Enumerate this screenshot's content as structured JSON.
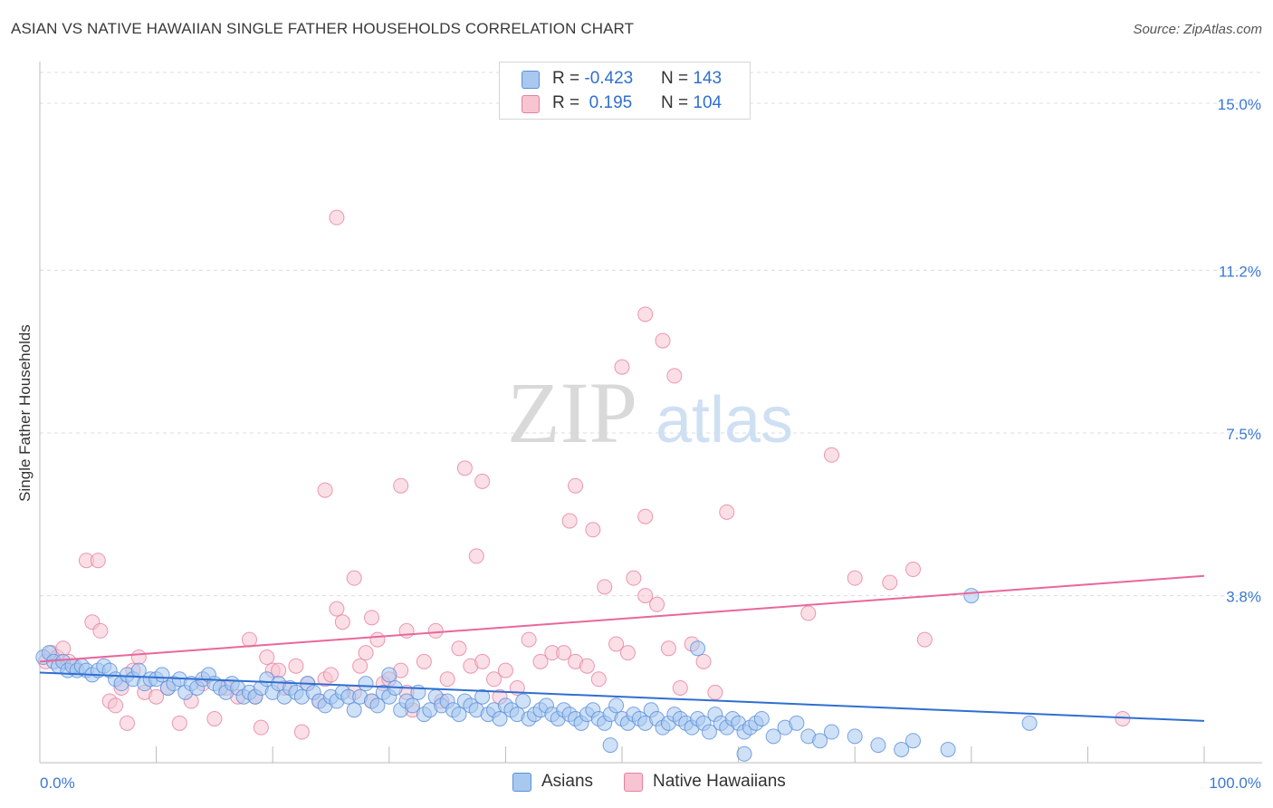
{
  "title": "ASIAN VS NATIVE HAWAIIAN SINGLE FATHER HOUSEHOLDS CORRELATION CHART",
  "source": "Source: ZipAtlas.com",
  "watermark": {
    "zip": "ZIP",
    "atlas": "atlas"
  },
  "legend": {
    "rows": [
      {
        "r_label": "R = ",
        "r_value": "-0.423",
        "n_label": "N = ",
        "n_value": "143",
        "color": "#a8c8f0",
        "border": "#5b8fd9"
      },
      {
        "r_label": "R = ",
        "r_value": " 0.195",
        "n_label": "N = ",
        "n_value": "104",
        "color": "#f8c4d2",
        "border": "#e77fa0"
      }
    ]
  },
  "bottom_legend": [
    {
      "label": "Asians",
      "color": "#a8c8f0",
      "border": "#5b8fd9"
    },
    {
      "label": "Native Hawaiians",
      "color": "#f8c4d2",
      "border": "#e77fa0"
    }
  ],
  "chart_data": {
    "type": "scatter",
    "title": "ASIAN VS NATIVE HAWAIIAN SINGLE FATHER HOUSEHOLDS CORRELATION CHART",
    "xlabel": "",
    "ylabel": "Single Father Households",
    "xlim": [
      0,
      100
    ],
    "ylim": [
      0,
      15.7
    ],
    "x_tick_labels": [
      "0.0%",
      "100.0%"
    ],
    "y_ticks": [
      3.8,
      7.5,
      11.2,
      15.0
    ],
    "y_tick_labels": [
      "3.8%",
      "7.5%",
      "11.2%",
      "15.0%"
    ],
    "grid": "horizontal dashed",
    "colors": {
      "asians": "#5b8fd9",
      "asians_fill": "#a8c8f0",
      "hawaiians": "#e77fa0",
      "hawaiians_fill": "#f8c4d2",
      "asian_trend": "#2f6fd1",
      "hawaiian_trend": "#e8689a"
    },
    "series": [
      {
        "name": "Asians",
        "trend": {
          "x": [
            0,
            100
          ],
          "y": [
            2.05,
            0.95
          ]
        },
        "points": [
          [
            0.3,
            2.4
          ],
          [
            0.8,
            2.5
          ],
          [
            1.2,
            2.3
          ],
          [
            1.6,
            2.2
          ],
          [
            2.0,
            2.3
          ],
          [
            2.4,
            2.1
          ],
          [
            2.8,
            2.2
          ],
          [
            3.2,
            2.1
          ],
          [
            3.6,
            2.2
          ],
          [
            4.0,
            2.1
          ],
          [
            4.5,
            2.0
          ],
          [
            5.0,
            2.1
          ],
          [
            5.5,
            2.2
          ],
          [
            6.0,
            2.1
          ],
          [
            6.5,
            1.9
          ],
          [
            7.0,
            1.8
          ],
          [
            7.5,
            2.0
          ],
          [
            8.0,
            1.9
          ],
          [
            8.5,
            2.1
          ],
          [
            9.0,
            1.8
          ],
          [
            9.5,
            1.9
          ],
          [
            10.0,
            1.9
          ],
          [
            10.5,
            2.0
          ],
          [
            11.0,
            1.7
          ],
          [
            11.5,
            1.8
          ],
          [
            12.0,
            1.9
          ],
          [
            12.5,
            1.6
          ],
          [
            13.0,
            1.8
          ],
          [
            13.5,
            1.7
          ],
          [
            14.0,
            1.9
          ],
          [
            14.5,
            2.0
          ],
          [
            15.0,
            1.8
          ],
          [
            15.5,
            1.7
          ],
          [
            16.0,
            1.6
          ],
          [
            16.5,
            1.8
          ],
          [
            17.0,
            1.7
          ],
          [
            17.5,
            1.5
          ],
          [
            18.0,
            1.6
          ],
          [
            18.5,
            1.5
          ],
          [
            19.0,
            1.7
          ],
          [
            19.5,
            1.9
          ],
          [
            20.0,
            1.6
          ],
          [
            20.5,
            1.8
          ],
          [
            21.0,
            1.5
          ],
          [
            21.5,
            1.7
          ],
          [
            22.0,
            1.6
          ],
          [
            22.5,
            1.5
          ],
          [
            23.0,
            1.8
          ],
          [
            23.5,
            1.6
          ],
          [
            24.0,
            1.4
          ],
          [
            24.5,
            1.3
          ],
          [
            25.0,
            1.5
          ],
          [
            25.5,
            1.4
          ],
          [
            26.0,
            1.6
          ],
          [
            26.5,
            1.5
          ],
          [
            27.0,
            1.2
          ],
          [
            27.5,
            1.5
          ],
          [
            28.0,
            1.8
          ],
          [
            28.5,
            1.4
          ],
          [
            29.0,
            1.3
          ],
          [
            29.5,
            1.6
          ],
          [
            30.0,
            1.5
          ],
          [
            30.5,
            1.7
          ],
          [
            31.0,
            1.2
          ],
          [
            31.5,
            1.4
          ],
          [
            32.0,
            1.3
          ],
          [
            32.5,
            1.6
          ],
          [
            33.0,
            1.1
          ],
          [
            33.5,
            1.2
          ],
          [
            34.0,
            1.5
          ],
          [
            34.5,
            1.3
          ],
          [
            35.0,
            1.4
          ],
          [
            35.5,
            1.2
          ],
          [
            36.0,
            1.1
          ],
          [
            36.5,
            1.4
          ],
          [
            37.0,
            1.3
          ],
          [
            37.5,
            1.2
          ],
          [
            38.0,
            1.5
          ],
          [
            38.5,
            1.1
          ],
          [
            39.0,
            1.2
          ],
          [
            39.5,
            1.0
          ],
          [
            40.0,
            1.3
          ],
          [
            40.5,
            1.2
          ],
          [
            41.0,
            1.1
          ],
          [
            41.5,
            1.4
          ],
          [
            42.0,
            1.0
          ],
          [
            42.5,
            1.1
          ],
          [
            43.0,
            1.2
          ],
          [
            43.5,
            1.3
          ],
          [
            44.0,
            1.1
          ],
          [
            44.5,
            1.0
          ],
          [
            45.0,
            1.2
          ],
          [
            45.5,
            1.1
          ],
          [
            46.0,
            1.0
          ],
          [
            46.5,
            0.9
          ],
          [
            47.0,
            1.1
          ],
          [
            47.5,
            1.2
          ],
          [
            48.0,
            1.0
          ],
          [
            48.5,
            0.9
          ],
          [
            49.0,
            1.1
          ],
          [
            49.5,
            1.3
          ],
          [
            50.0,
            1.0
          ],
          [
            50.5,
            0.9
          ],
          [
            51.0,
            1.1
          ],
          [
            51.5,
            1.0
          ],
          [
            52.0,
            0.9
          ],
          [
            52.5,
            1.2
          ],
          [
            53.0,
            1.0
          ],
          [
            53.5,
            0.8
          ],
          [
            54.0,
            0.9
          ],
          [
            54.5,
            1.1
          ],
          [
            55.0,
            1.0
          ],
          [
            55.5,
            0.9
          ],
          [
            56.0,
            0.8
          ],
          [
            56.5,
            1.0
          ],
          [
            57.0,
            0.9
          ],
          [
            57.5,
            0.7
          ],
          [
            58.0,
            1.1
          ],
          [
            58.5,
            0.9
          ],
          [
            59.0,
            0.8
          ],
          [
            59.5,
            1.0
          ],
          [
            60.0,
            0.9
          ],
          [
            60.5,
            0.7
          ],
          [
            61.0,
            0.8
          ],
          [
            61.5,
            0.9
          ],
          [
            62.0,
            1.0
          ],
          [
            63.0,
            0.6
          ],
          [
            64.0,
            0.8
          ],
          [
            65.0,
            0.9
          ],
          [
            66.0,
            0.6
          ],
          [
            67.0,
            0.5
          ],
          [
            68.0,
            0.7
          ],
          [
            70.0,
            0.6
          ],
          [
            72.0,
            0.4
          ],
          [
            74.0,
            0.3
          ],
          [
            75.0,
            0.5
          ],
          [
            78.0,
            0.3
          ],
          [
            80.0,
            3.8
          ],
          [
            85.0,
            0.9
          ],
          [
            60.5,
            0.2
          ],
          [
            49.0,
            0.4
          ],
          [
            56.5,
            2.6
          ],
          [
            30.0,
            2.0
          ]
        ]
      },
      {
        "name": "Native Hawaiians",
        "trend": {
          "x": [
            0,
            100
          ],
          "y": [
            2.3,
            4.25
          ]
        },
        "points": [
          [
            0.5,
            2.3
          ],
          [
            1.0,
            2.5
          ],
          [
            1.5,
            2.4
          ],
          [
            2.0,
            2.6
          ],
          [
            2.5,
            2.3
          ],
          [
            3.0,
            2.2
          ],
          [
            4.0,
            4.6
          ],
          [
            5.0,
            4.6
          ],
          [
            4.5,
            3.2
          ],
          [
            5.2,
            3.0
          ],
          [
            6.0,
            1.4
          ],
          [
            6.5,
            1.3
          ],
          [
            7.0,
            1.7
          ],
          [
            7.5,
            0.9
          ],
          [
            8.0,
            2.1
          ],
          [
            8.5,
            2.4
          ],
          [
            9.0,
            1.6
          ],
          [
            10.0,
            1.5
          ],
          [
            11.0,
            1.7
          ],
          [
            12.0,
            0.9
          ],
          [
            13.0,
            1.4
          ],
          [
            14.0,
            1.8
          ],
          [
            15.0,
            1.0
          ],
          [
            16.0,
            1.7
          ],
          [
            17.0,
            1.5
          ],
          [
            18.0,
            2.8
          ],
          [
            18.5,
            1.5
          ],
          [
            19.0,
            0.8
          ],
          [
            19.5,
            2.4
          ],
          [
            20.0,
            2.1
          ],
          [
            20.5,
            2.1
          ],
          [
            21.0,
            1.7
          ],
          [
            22.0,
            2.2
          ],
          [
            22.5,
            0.7
          ],
          [
            23.0,
            1.8
          ],
          [
            24.0,
            1.4
          ],
          [
            24.5,
            1.9
          ],
          [
            25.0,
            2.0
          ],
          [
            25.5,
            3.5
          ],
          [
            26.0,
            3.2
          ],
          [
            27.0,
            1.6
          ],
          [
            27.5,
            2.2
          ],
          [
            28.0,
            2.5
          ],
          [
            28.5,
            1.4
          ],
          [
            29.0,
            2.8
          ],
          [
            29.5,
            1.8
          ],
          [
            30.0,
            1.9
          ],
          [
            31.0,
            2.1
          ],
          [
            31.5,
            1.6
          ],
          [
            32.0,
            1.2
          ],
          [
            33.0,
            2.3
          ],
          [
            34.0,
            3.0
          ],
          [
            34.5,
            1.4
          ],
          [
            35.0,
            1.9
          ],
          [
            36.0,
            2.6
          ],
          [
            37.0,
            2.2
          ],
          [
            37.5,
            4.7
          ],
          [
            38.0,
            2.3
          ],
          [
            39.0,
            1.9
          ],
          [
            39.5,
            1.5
          ],
          [
            40.0,
            2.1
          ],
          [
            41.0,
            1.7
          ],
          [
            42.0,
            2.8
          ],
          [
            43.0,
            2.3
          ],
          [
            44.0,
            2.5
          ],
          [
            45.0,
            2.5
          ],
          [
            46.0,
            2.3
          ],
          [
            47.0,
            2.2
          ],
          [
            48.0,
            1.9
          ],
          [
            48.5,
            4.0
          ],
          [
            49.5,
            2.7
          ],
          [
            50.5,
            2.5
          ],
          [
            51.0,
            4.2
          ],
          [
            52.0,
            3.8
          ],
          [
            53.0,
            3.6
          ],
          [
            54.0,
            2.6
          ],
          [
            55.0,
            1.7
          ],
          [
            56.0,
            2.7
          ],
          [
            57.0,
            2.3
          ],
          [
            58.0,
            1.6
          ],
          [
            25.5,
            12.4
          ],
          [
            36.5,
            6.7
          ],
          [
            24.5,
            6.2
          ],
          [
            31.0,
            6.3
          ],
          [
            38.0,
            6.4
          ],
          [
            46.0,
            6.3
          ],
          [
            45.5,
            5.5
          ],
          [
            47.5,
            5.3
          ],
          [
            52.0,
            5.6
          ],
          [
            59.0,
            5.7
          ],
          [
            50.0,
            9.0
          ],
          [
            52.0,
            10.2
          ],
          [
            53.5,
            9.6
          ],
          [
            54.5,
            8.8
          ],
          [
            68.0,
            7.0
          ],
          [
            70.0,
            4.2
          ],
          [
            73.0,
            4.1
          ],
          [
            75.0,
            4.4
          ],
          [
            66.0,
            3.4
          ],
          [
            76.0,
            2.8
          ],
          [
            93.0,
            1.0
          ],
          [
            27.0,
            4.2
          ],
          [
            28.5,
            3.3
          ],
          [
            31.5,
            3.0
          ]
        ]
      }
    ]
  }
}
